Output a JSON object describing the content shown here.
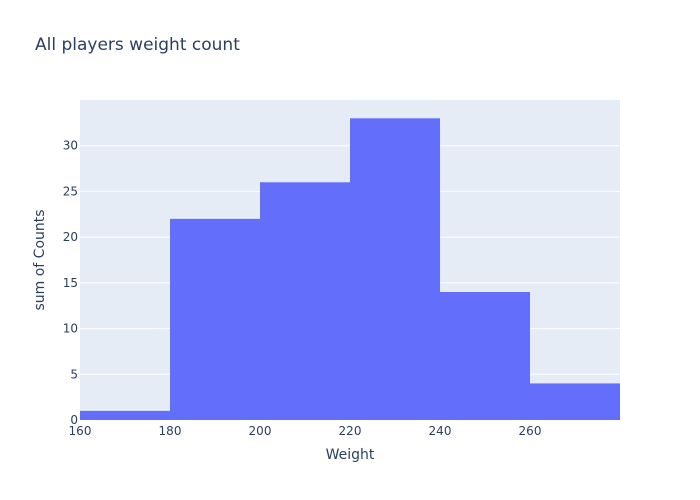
{
  "chart_data": {
    "type": "bar",
    "title": "All players weight count",
    "xlabel": "Weight",
    "ylabel": "sum of Counts",
    "bins": [
      {
        "start": 160,
        "end": 180,
        "value": 1
      },
      {
        "start": 180,
        "end": 200,
        "value": 22
      },
      {
        "start": 200,
        "end": 220,
        "value": 26
      },
      {
        "start": 220,
        "end": 240,
        "value": 33
      },
      {
        "start": 240,
        "end": 260,
        "value": 14
      },
      {
        "start": 260,
        "end": 280,
        "value": 4
      }
    ],
    "xlim": [
      160,
      280
    ],
    "ylim": [
      0,
      35
    ],
    "x_ticks": [
      160,
      180,
      200,
      220,
      240,
      260
    ],
    "y_ticks": [
      0,
      5,
      10,
      15,
      20,
      25,
      30
    ],
    "grid": true,
    "colors": {
      "bar": "#636efa",
      "plot_bg": "#e5ecf6",
      "grid": "#ffffff",
      "text": "#2a3f5f"
    }
  }
}
